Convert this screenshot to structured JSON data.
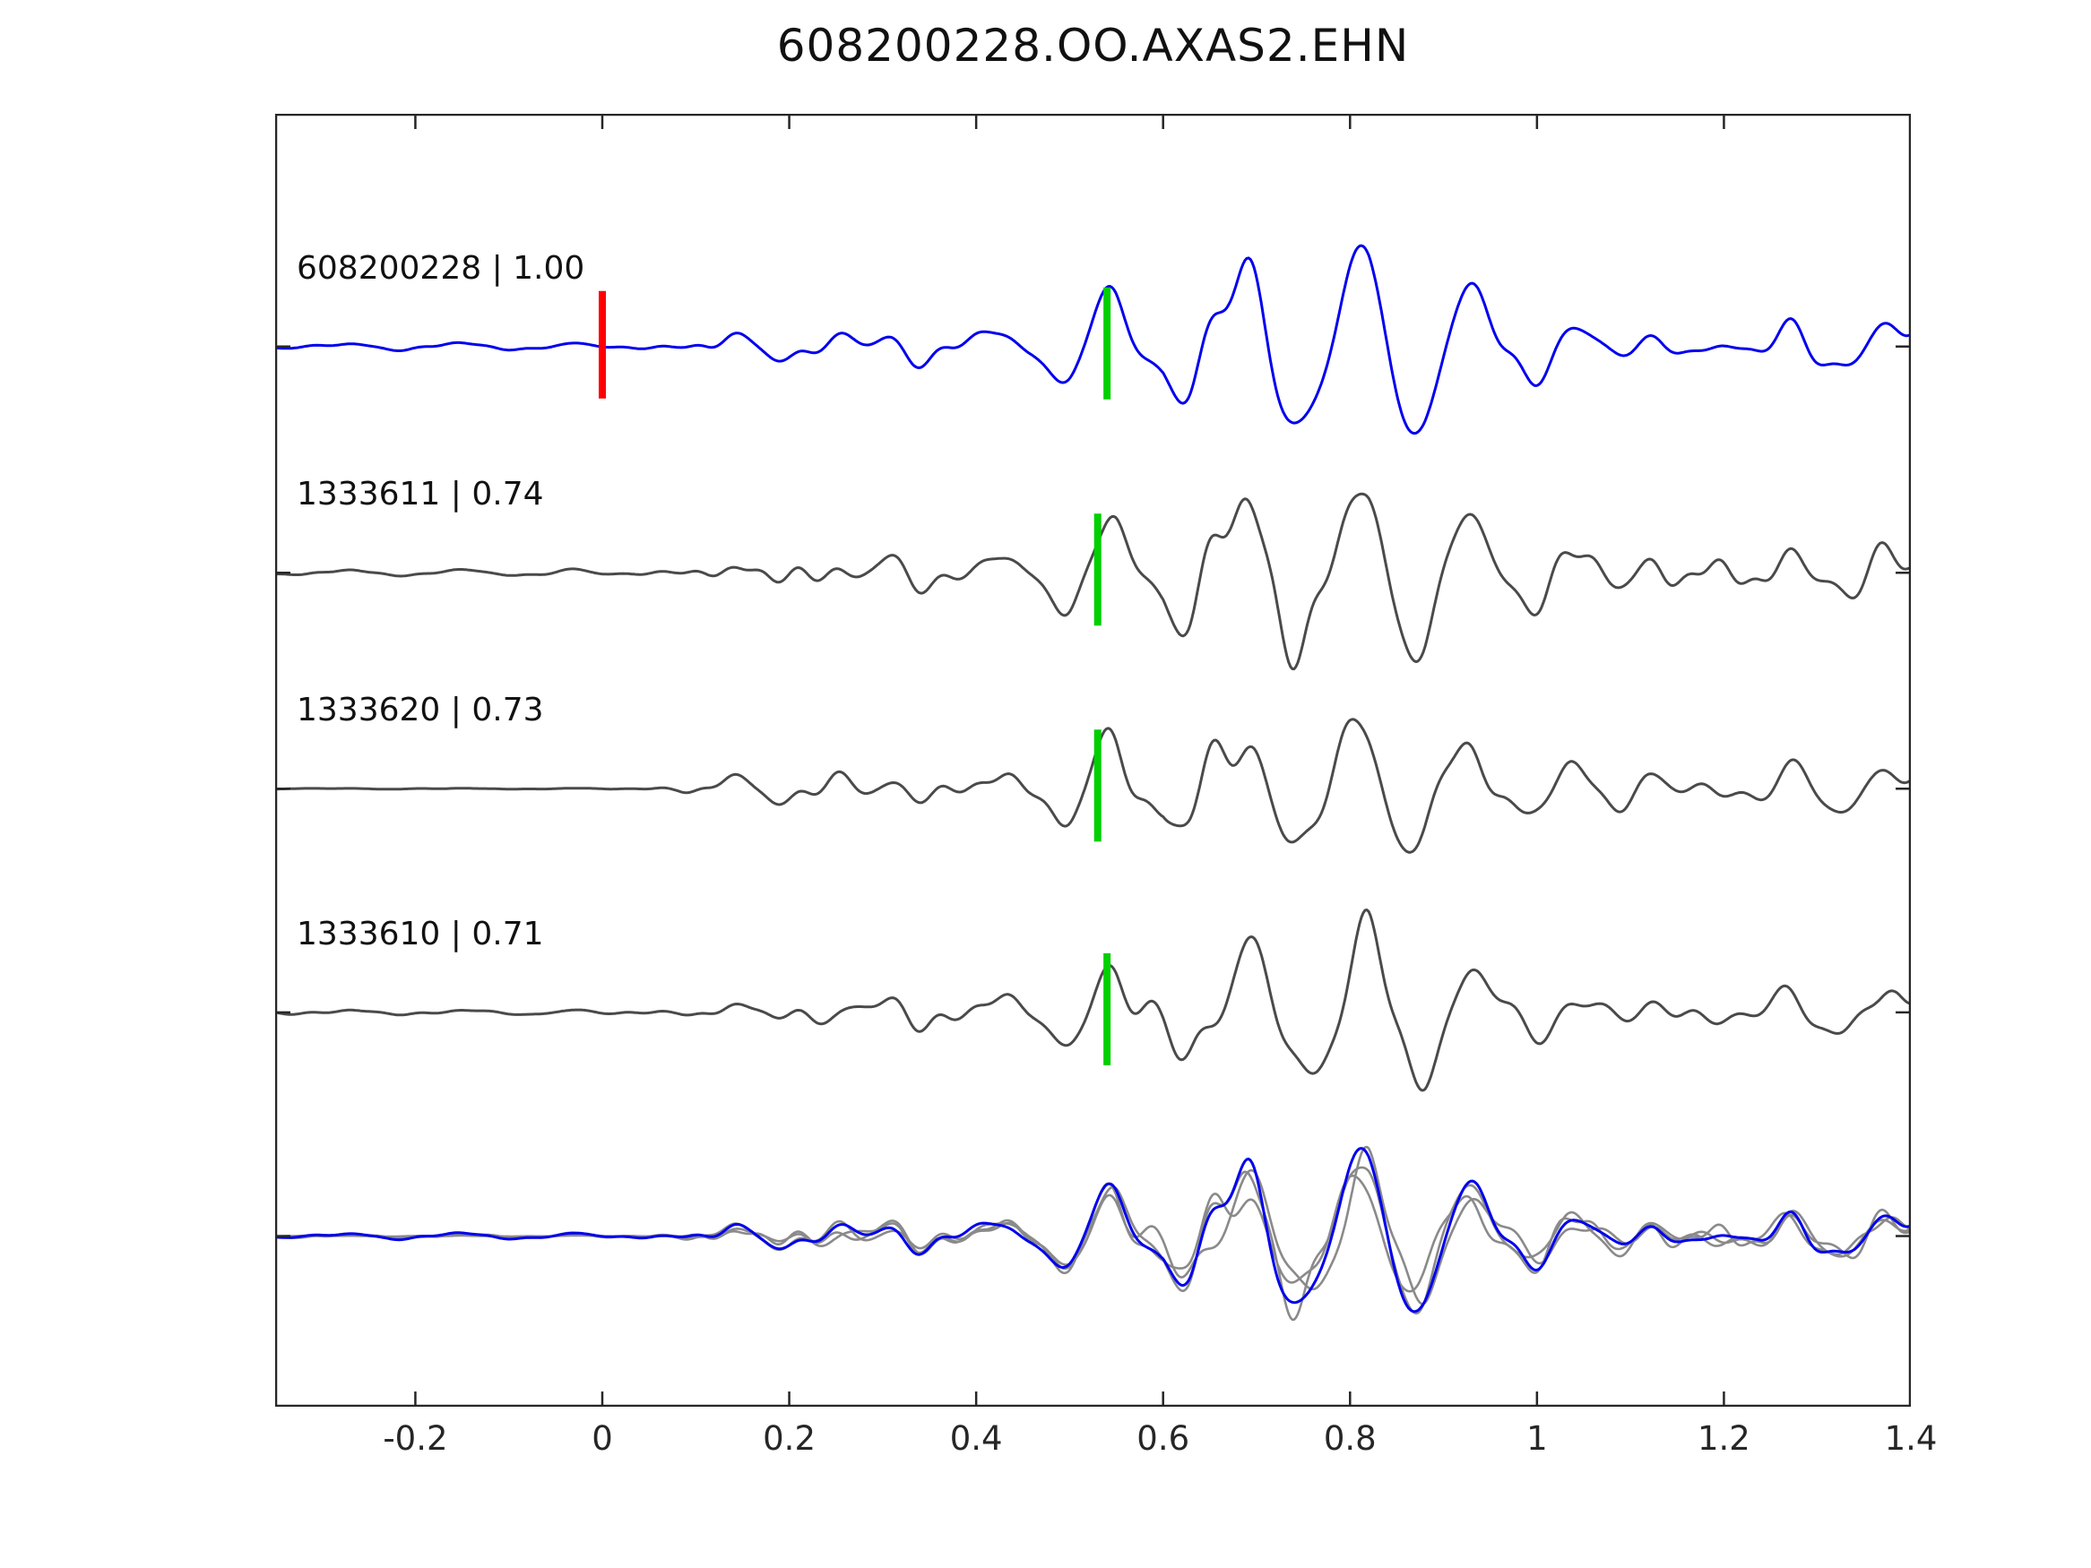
{
  "figure": {
    "title": "608200228.OO.AXAS2.EHN"
  },
  "chart_data": {
    "type": "line",
    "title": "608200228.OO.AXAS2.EHN",
    "xlabel": "",
    "ylabel": "",
    "xlim": [
      -0.35,
      1.4
    ],
    "x_ticks": [
      -0.2,
      0,
      0.2,
      0.4,
      0.6,
      0.8,
      1,
      1.2,
      1.4
    ],
    "x_tick_labels": [
      "-0.2",
      "0",
      "0.2",
      "0.4",
      "0.6",
      "0.8",
      "1",
      "1.2",
      "1.4"
    ],
    "grid": false,
    "legend_position": "inline-trace-labels",
    "background": "#ffffff",
    "axis_color": "#262626",
    "colors": {
      "template_trace": "#0000ee",
      "detection_trace": "#4a4a4a",
      "overlay_detection_trace": "#8a8a8a",
      "origin_marker": "#ff0000",
      "pick_marker": "#00cf00"
    },
    "traces": [
      {
        "id": "608200228",
        "label": "608200228 | 1.00",
        "correlation": 1.0,
        "role": "template",
        "origin_time": 0.0,
        "pick_time": 0.54,
        "pre_event_gain": 1.0
      },
      {
        "id": "1333611",
        "label": "1333611 | 0.74",
        "correlation": 0.74,
        "role": "detection",
        "pick_time": 0.53,
        "pre_event_gain": 0.9
      },
      {
        "id": "1333620",
        "label": "1333620 | 0.73",
        "correlation": 0.73,
        "role": "detection",
        "pick_time": 0.53,
        "pre_event_gain": 0.2
      },
      {
        "id": "1333610",
        "label": "1333610 | 0.71",
        "correlation": 0.71,
        "role": "detection",
        "pick_time": 0.54,
        "pre_event_gain": 0.85
      }
    ],
    "overlay_row": {
      "includes": [
        "608200228",
        "1333611",
        "1333620",
        "1333610"
      ]
    },
    "waveform_synthesis": {
      "n_points": 900,
      "seed": 20240817,
      "n_components": 26,
      "freq_min": 7,
      "freq_max": 30,
      "envelope": [
        [
          -0.35,
          0.045
        ],
        [
          -0.1,
          0.05
        ],
        [
          0.02,
          0.05
        ],
        [
          0.08,
          0.07
        ],
        [
          0.12,
          0.22
        ],
        [
          0.18,
          0.3
        ],
        [
          0.28,
          0.27
        ],
        [
          0.38,
          0.26
        ],
        [
          0.46,
          0.33
        ],
        [
          0.5,
          0.52
        ],
        [
          0.55,
          0.6
        ],
        [
          0.6,
          0.55
        ],
        [
          0.63,
          0.85
        ],
        [
          0.67,
          1.0
        ],
        [
          0.72,
          0.95
        ],
        [
          0.78,
          0.9
        ],
        [
          0.82,
          1.0
        ],
        [
          0.88,
          0.95
        ],
        [
          0.95,
          0.7
        ],
        [
          1.02,
          0.48
        ],
        [
          1.1,
          0.42
        ],
        [
          1.2,
          0.4
        ],
        [
          1.3,
          0.35
        ],
        [
          1.4,
          0.38
        ]
      ]
    }
  }
}
